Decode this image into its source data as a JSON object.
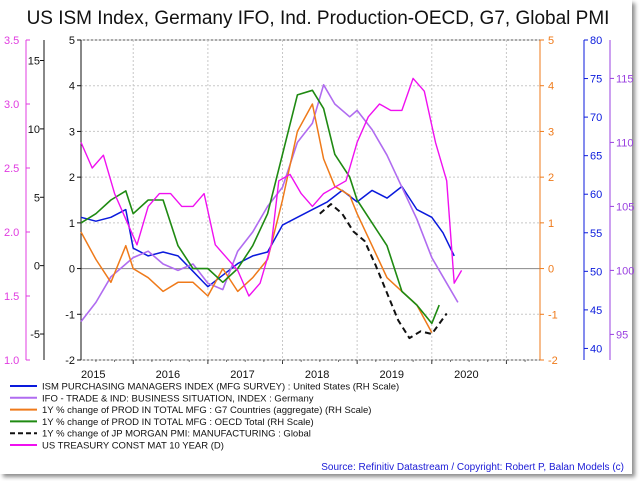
{
  "chart_data": {
    "type": "line",
    "title": "US ISM Index, Germany IFO, Ind. Production-OECD, G7, Global PMI",
    "x_ticks": [
      "2015",
      "2016",
      "2017",
      "2018",
      "2019",
      "2020"
    ],
    "x_range": [
      2014.3,
      2020.45
    ],
    "axes": {
      "pink_left": {
        "range": [
          1.0,
          3.5
        ],
        "ticks": [
          "1.0",
          "1.5",
          "2.0",
          "2.5",
          "3.0",
          "3.5"
        ],
        "tick_values": [
          1.0,
          1.5,
          2.0,
          2.5,
          3.0,
          3.5
        ]
      },
      "black_left": {
        "range": [
          -6.9,
          16.5
        ],
        "ticks": [
          "-5",
          "0",
          "5",
          "10",
          "15"
        ],
        "tick_values": [
          -5,
          0,
          5,
          10,
          15
        ]
      },
      "black_inner": {
        "range": [
          -2,
          5
        ],
        "ticks": [
          "-2",
          "-1",
          "0",
          "1",
          "2",
          "3",
          "4",
          "5"
        ],
        "tick_values": [
          -2,
          -1,
          0,
          1,
          2,
          3,
          4,
          5
        ]
      },
      "orange_right": {
        "range": [
          -2,
          5
        ],
        "ticks": [
          "-2",
          "-1",
          "0",
          "1",
          "2",
          "3",
          "4",
          "5"
        ],
        "tick_values": [
          -2,
          -1,
          0,
          1,
          2,
          3,
          4,
          5
        ]
      },
      "blue_right": {
        "range": [
          38.5,
          80
        ],
        "ticks": [
          "40",
          "45",
          "50",
          "55",
          "60",
          "65",
          "70",
          "75",
          "80"
        ],
        "tick_values": [
          40,
          45,
          50,
          55,
          60,
          65,
          70,
          75,
          80
        ]
      },
      "violet_right": {
        "range": [
          93,
          118
        ],
        "ticks": [
          "95",
          "100",
          "105",
          "110",
          "115"
        ],
        "tick_values": [
          95,
          100,
          105,
          110,
          115
        ]
      }
    },
    "series": [
      {
        "name": "ISM PURCHASING MANAGERS INDEX (MFG SURVEY) : United States (RH Scale)",
        "axis": "blue_right",
        "color": "#0a1adc",
        "dash": "",
        "width": 1.5,
        "x": [
          2014.3,
          2014.5,
          2014.7,
          2014.9,
          2015.0,
          2015.2,
          2015.4,
          2015.6,
          2015.8,
          2015.95,
          2016.0,
          2016.2,
          2016.4,
          2016.6,
          2016.8,
          2017.0,
          2017.2,
          2017.4,
          2017.6,
          2017.8,
          2018.0,
          2018.2,
          2018.4,
          2018.6,
          2018.8,
          2019.0,
          2019.15,
          2019.3
        ],
        "values": [
          57,
          56.5,
          57,
          58,
          53,
          52,
          52.5,
          52,
          50,
          48.5,
          48,
          49.5,
          51,
          52,
          52.5,
          56,
          57,
          58,
          59,
          60.5,
          59,
          60.5,
          59.5,
          61,
          58,
          57,
          55,
          52
        ]
      },
      {
        "name": "IFO - TRADE & IND: BUSINESS SITUATION, INDEX : Germany",
        "axis": "violet_right",
        "color": "#b06cf0",
        "dash": "",
        "width": 1.6,
        "x": [
          2014.3,
          2014.5,
          2014.7,
          2014.9,
          2015.0,
          2015.2,
          2015.4,
          2015.6,
          2015.8,
          2016.0,
          2016.2,
          2016.4,
          2016.6,
          2016.8,
          2017.0,
          2017.2,
          2017.4,
          2017.55,
          2017.7,
          2017.9,
          2018.0,
          2018.2,
          2018.4,
          2018.6,
          2018.8,
          2019.0,
          2019.2,
          2019.35
        ],
        "values": [
          96,
          97.5,
          99.5,
          100.5,
          101,
          101.5,
          100.5,
          100,
          100.5,
          99,
          98.5,
          101.5,
          103,
          105,
          106.5,
          110,
          111.5,
          114.5,
          113,
          112,
          112.5,
          111,
          109,
          106.5,
          104,
          101,
          99,
          97.5
        ]
      },
      {
        "name": "1Y % change of PROD IN TOTAL MFG : G7 Countries (aggregate) (RH Scale)",
        "axis": "orange_right",
        "color": "#ef7a1a",
        "dash": "",
        "width": 1.5,
        "x": [
          2014.3,
          2014.5,
          2014.7,
          2014.9,
          2015.0,
          2015.2,
          2015.4,
          2015.6,
          2015.8,
          2016.0,
          2016.2,
          2016.4,
          2016.6,
          2016.8,
          2017.0,
          2017.2,
          2017.4,
          2017.55,
          2017.7,
          2017.9,
          2018.0,
          2018.2,
          2018.4,
          2018.6,
          2018.8,
          2019.0
        ],
        "values": [
          0.8,
          0.2,
          -0.3,
          0.5,
          0,
          -0.2,
          -0.5,
          -0.3,
          -0.3,
          -0.6,
          0,
          -0.5,
          -0.2,
          0.2,
          1.5,
          3,
          3.6,
          2.4,
          1.8,
          1.6,
          1.2,
          0.5,
          -0.2,
          -0.5,
          -0.8,
          -1.4
        ]
      },
      {
        "name": "1Y % change of PROD IN TOTAL MFG : OECD Total (RH Scale)",
        "axis": "orange_right",
        "color": "#1f8a12",
        "dash": "",
        "width": 1.6,
        "x": [
          2014.3,
          2014.5,
          2014.7,
          2014.9,
          2015.0,
          2015.2,
          2015.4,
          2015.6,
          2015.8,
          2016.0,
          2016.2,
          2016.4,
          2016.6,
          2016.8,
          2017.0,
          2017.2,
          2017.4,
          2017.55,
          2017.7,
          2017.9,
          2018.0,
          2018.2,
          2018.4,
          2018.6,
          2018.8,
          2019.0,
          2019.1
        ],
        "values": [
          1,
          1.2,
          1.5,
          1.7,
          1.2,
          1.5,
          1.5,
          0.5,
          0,
          0,
          -0.3,
          0,
          0.5,
          1.2,
          2.5,
          3.8,
          3.9,
          3.5,
          2.5,
          2,
          1.5,
          1,
          0.5,
          -0.5,
          -0.8,
          -1.2,
          -0.8
        ]
      },
      {
        "name": "1Y % change of JP MORGAN PMI: MANUFACTURING : Global",
        "axis": "black_left",
        "color": "#111111",
        "dash": "6,4",
        "width": 2,
        "x": [
          2017.5,
          2017.65,
          2017.8,
          2017.95,
          2018.1,
          2018.25,
          2018.4,
          2018.55,
          2018.7,
          2018.85,
          2019.0,
          2019.2
        ],
        "values": [
          3.8,
          4.5,
          3.8,
          2.5,
          1.8,
          0,
          -2,
          -4,
          -5.3,
          -4.8,
          -5,
          -3.5
        ]
      },
      {
        "name": "US TREASURY CONST MAT 10 YEAR (D)",
        "axis": "pink_left",
        "color": "#f010f0",
        "dash": "",
        "width": 1.4,
        "x": [
          2014.3,
          2014.45,
          2014.6,
          2014.75,
          2014.9,
          2015.05,
          2015.2,
          2015.35,
          2015.5,
          2015.65,
          2015.8,
          2015.95,
          2016.1,
          2016.25,
          2016.4,
          2016.55,
          2016.7,
          2016.85,
          2016.95,
          2017.1,
          2017.25,
          2017.4,
          2017.55,
          2017.7,
          2017.85,
          2018.0,
          2018.15,
          2018.3,
          2018.45,
          2018.6,
          2018.75,
          2018.9,
          2019.05,
          2019.2,
          2019.3,
          2019.4
        ],
        "values": [
          2.7,
          2.5,
          2.6,
          2.3,
          2.1,
          1.9,
          2.2,
          2.3,
          2.3,
          2.2,
          2.2,
          2.3,
          1.9,
          1.8,
          1.7,
          1.5,
          1.6,
          1.9,
          2.4,
          2.45,
          2.3,
          2.2,
          2.3,
          2.35,
          2.4,
          2.7,
          2.9,
          3.0,
          2.95,
          2.95,
          3.2,
          3.1,
          2.7,
          2.4,
          1.6,
          1.7
        ]
      }
    ],
    "legend_entries": [
      "ISM PURCHASING MANAGERS INDEX (MFG SURVEY) : United States (RH Scale)",
      "IFO - TRADE & IND: BUSINESS SITUATION, INDEX : Germany",
      "1Y % change of PROD IN TOTAL MFG : G7 Countries (aggregate) (RH Scale)",
      "1Y % change of PROD IN TOTAL MFG : OECD Total (RH Scale)",
      "1Y % change of JP MORGAN PMI: MANUFACTURING : Global",
      "US TREASURY CONST MAT 10 YEAR (D)"
    ],
    "source": "Source: Refinitiv Datastream / Copyright: Robert P, Balan Models (c)",
    "zero_line": 0,
    "colors": {
      "pink": "#e03ce0",
      "black": "#111111",
      "orange": "#ef7a1a",
      "blue": "#0a1adc",
      "violet": "#9a40e0"
    }
  }
}
